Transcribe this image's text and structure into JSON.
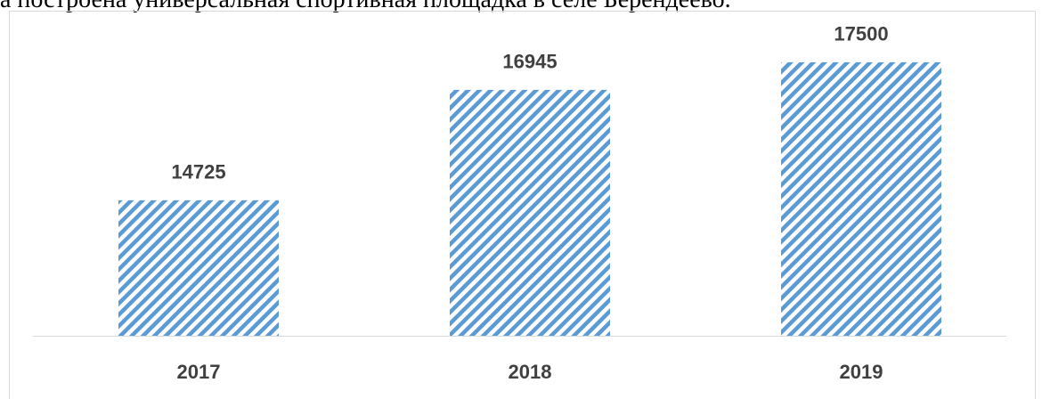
{
  "document_text": "а построена универсальная спортивная площадка в селе Берендеево.",
  "chart_data": {
    "type": "bar",
    "categories": [
      "2017",
      "2018",
      "2019"
    ],
    "values": [
      14725,
      16945,
      17500
    ],
    "color": "#5b9bd5",
    "ylim": [
      12000,
      18000
    ]
  }
}
